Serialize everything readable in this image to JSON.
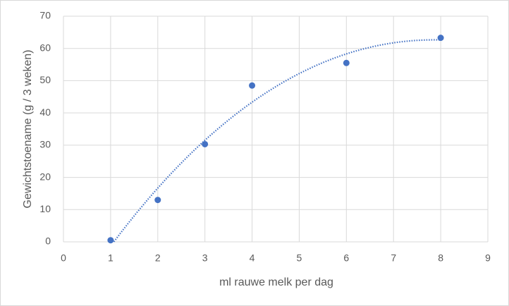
{
  "chart_data": {
    "type": "scatter",
    "x_label": "ml rauwe melk per dag",
    "y_label": "Gewichtstoename (g / 3 weken)",
    "x": [
      1,
      2,
      3,
      4,
      6,
      8
    ],
    "values": [
      0.5,
      13,
      30.3,
      48.5,
      55.5,
      63.3
    ],
    "color": "#4472c4",
    "trendline": {
      "type": "polynomial",
      "order": 3
    },
    "xlim": [
      0,
      9
    ],
    "xticks": [
      0,
      1,
      2,
      3,
      4,
      5,
      6,
      7,
      8,
      9
    ],
    "ylim": [
      0,
      70
    ],
    "yticks": [
      0,
      10,
      20,
      30,
      40,
      50,
      60,
      70
    ],
    "grid": true
  }
}
